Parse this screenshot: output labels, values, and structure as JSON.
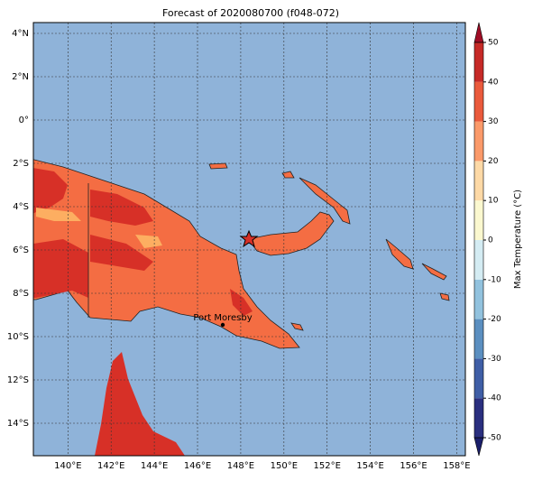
{
  "map": {
    "title": "Forecast of 2020080700 (f048-072)",
    "xlim": [
      138.4,
      158.4
    ],
    "ylim": [
      -15.5,
      4.5
    ],
    "xticks": [
      {
        "value": 140,
        "label": "140°E"
      },
      {
        "value": 142,
        "label": "142°E"
      },
      {
        "value": 144,
        "label": "144°E"
      },
      {
        "value": 146,
        "label": "146°E"
      },
      {
        "value": 148,
        "label": "148°E"
      },
      {
        "value": 150,
        "label": "150°E"
      },
      {
        "value": 152,
        "label": "152°E"
      },
      {
        "value": 154,
        "label": "154°E"
      },
      {
        "value": 156,
        "label": "156°E"
      },
      {
        "value": 158,
        "label": "158°E"
      }
    ],
    "yticks": [
      {
        "value": 4,
        "label": "4°N"
      },
      {
        "value": 2,
        "label": "2°N"
      },
      {
        "value": 0,
        "label": "0°"
      },
      {
        "value": -2,
        "label": "2°S"
      },
      {
        "value": -4,
        "label": "4°S"
      },
      {
        "value": -6,
        "label": "6°S"
      },
      {
        "value": -8,
        "label": "8°S"
      },
      {
        "value": -10,
        "label": "10°S"
      },
      {
        "value": -12,
        "label": "12°S"
      },
      {
        "value": -14,
        "label": "14°S"
      }
    ],
    "grid": true,
    "city": "Port Moresby"
  },
  "colorbar": {
    "label": "Max Temperature (°C)",
    "ticks": [
      -50,
      -40,
      -30,
      -20,
      -10,
      0,
      10,
      20,
      30,
      40,
      50
    ],
    "colors": [
      "#2a2f7f",
      "#3f5ea6",
      "#5b8fc0",
      "#92c2de",
      "#d4ecf3",
      "#fbf8cf",
      "#fdd9a6",
      "#fb9a6a",
      "#ea5a3c",
      "#c62a27"
    ],
    "under": "#1b1f6b",
    "over": "#a00d26"
  }
}
